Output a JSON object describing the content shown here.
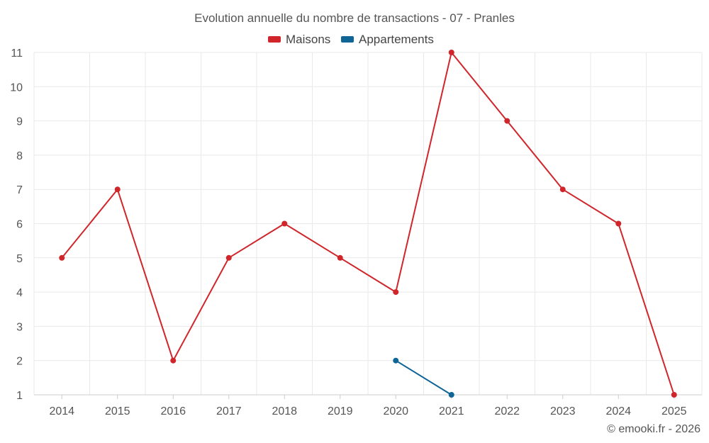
{
  "chart_data": {
    "type": "line",
    "title": "Evolution annuelle du nombre de transactions - 07 - Pranles",
    "x": [
      "2014",
      "2015",
      "2016",
      "2017",
      "2018",
      "2019",
      "2020",
      "2021",
      "2022",
      "2023",
      "2024",
      "2025"
    ],
    "series": [
      {
        "name": "Maisons",
        "color": "#d0262b",
        "values": [
          5,
          7,
          2,
          5,
          6,
          5,
          4,
          11,
          9,
          7,
          6,
          1
        ]
      },
      {
        "name": "Appartements",
        "color": "#0e6596",
        "values": [
          null,
          null,
          null,
          null,
          null,
          null,
          2,
          1,
          null,
          null,
          null,
          null
        ]
      }
    ],
    "yticks": [
      1,
      2,
      3,
      4,
      5,
      6,
      7,
      8,
      9,
      10,
      11
    ],
    "ylim": [
      1,
      11
    ],
    "xlabel": "",
    "ylabel": "",
    "grid": true,
    "legend_position": "top-center",
    "credit": "© emooki.fr - 2026"
  }
}
